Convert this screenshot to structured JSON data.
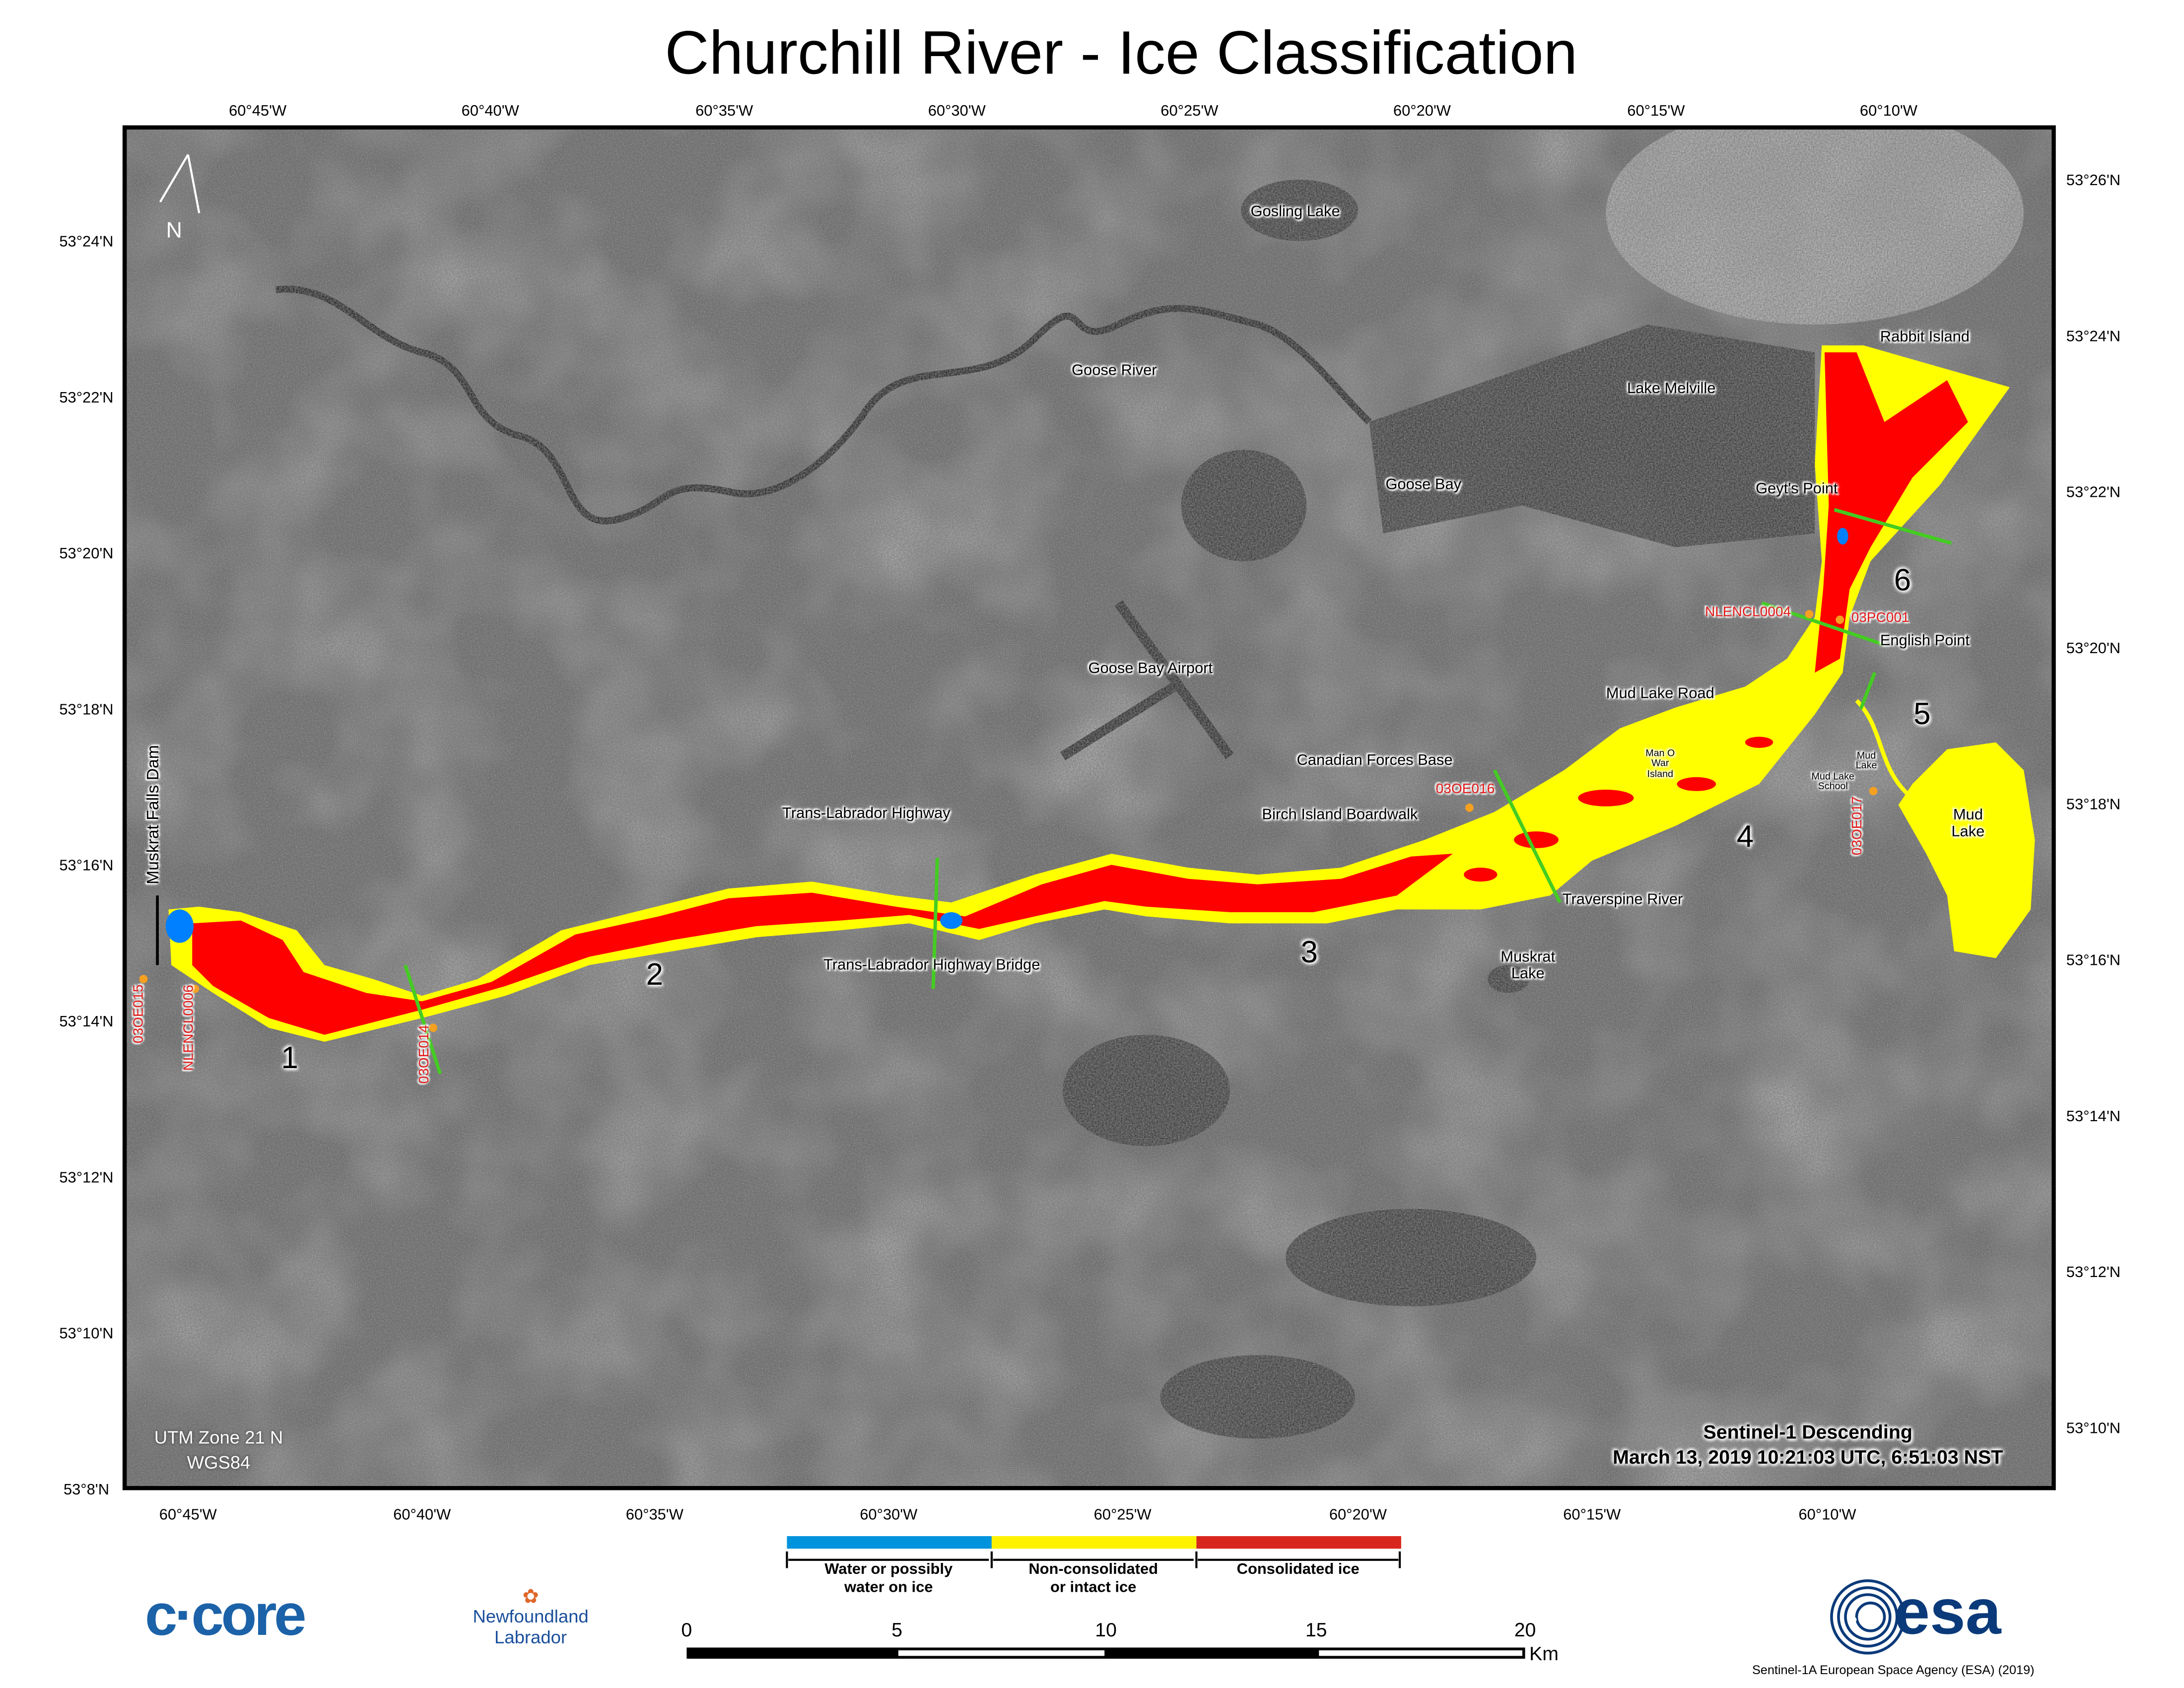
{
  "title": "Churchill River - Ice Classification",
  "axes": {
    "top_longitudes": [
      "60°45'W",
      "60°40'W",
      "60°35'W",
      "60°30'W",
      "60°25'W",
      "60°20'W",
      "60°15'W",
      "60°10'W"
    ],
    "bottom_longitudes": [
      "60°45'W",
      "60°40'W",
      "60°35'W",
      "60°30'W",
      "60°25'W",
      "60°20'W",
      "60°15'W",
      "60°10'W"
    ],
    "left_latitudes": [
      "53°24'N",
      "53°22'N",
      "53°20'N",
      "53°18'N",
      "53°16'N",
      "53°14'N",
      "53°12'N",
      "53°10'N",
      "53°8'N"
    ],
    "right_latitudes": [
      "53°26'N",
      "53°24'N",
      "53°22'N",
      "53°20'N",
      "53°18'N",
      "53°16'N",
      "53°14'N",
      "53°12'N",
      "53°10'N"
    ]
  },
  "north_arrow": "N",
  "places": [
    "Gosling Lake",
    "Goose River",
    "Lake Melville",
    "Goose Bay",
    "Rabbit Island",
    "Geyt's Point",
    "English Point",
    "Mud Lake Road",
    "Goose Bay Airport",
    "Canadian Forces Base",
    "Man O War Island",
    "Mud Lake",
    "Mud Lake School",
    "Mud Lake",
    "Birch Island Boardwalk",
    "Trans-Labrador Highway",
    "Traverspine River",
    "Trans-Labrador Highway Bridge",
    "Muskrat Lake",
    "Muskrat Falls Dam"
  ],
  "stations": [
    "NLENCL0004",
    "03PC001",
    "03OE016",
    "03OE017",
    "03OE015",
    "NLENCL0006",
    "03OE014"
  ],
  "regions": [
    "1",
    "2",
    "3",
    "4",
    "5",
    "6"
  ],
  "map_info": {
    "projection_line1": "UTM Zone 21 N",
    "projection_line2": "WGS84",
    "sensor": "Sentinel-1 Descending",
    "acquisition": "March 13, 2019 10:21:03 UTC, 6:51:03 NST"
  },
  "legend": {
    "items": [
      {
        "label_line1": "Water or possibly",
        "label_line2": "water on ice",
        "color": "#0093dd"
      },
      {
        "label_line1": "Non-consolidated",
        "label_line2": "or intact ice",
        "color": "#fff200"
      },
      {
        "label_line1": "Consolidated ice",
        "label_line2": "",
        "color": "#d9261c"
      }
    ]
  },
  "scale_bar": {
    "ticks": [
      "0",
      "5",
      "10",
      "15",
      "20"
    ],
    "unit": "Km"
  },
  "logos": {
    "ccore": "c·core",
    "nl_line1": "Newfoundland",
    "nl_line2": "Labrador",
    "esa": "esa"
  },
  "credit": "Sentinel-1A European Space Agency (ESA) (2019)",
  "colors": {
    "water": "#0080ff",
    "non_consolidated": "#ffff00",
    "consolidated": "#ff0000",
    "transect": "#44cc22",
    "station_label": "#e21a1a"
  }
}
